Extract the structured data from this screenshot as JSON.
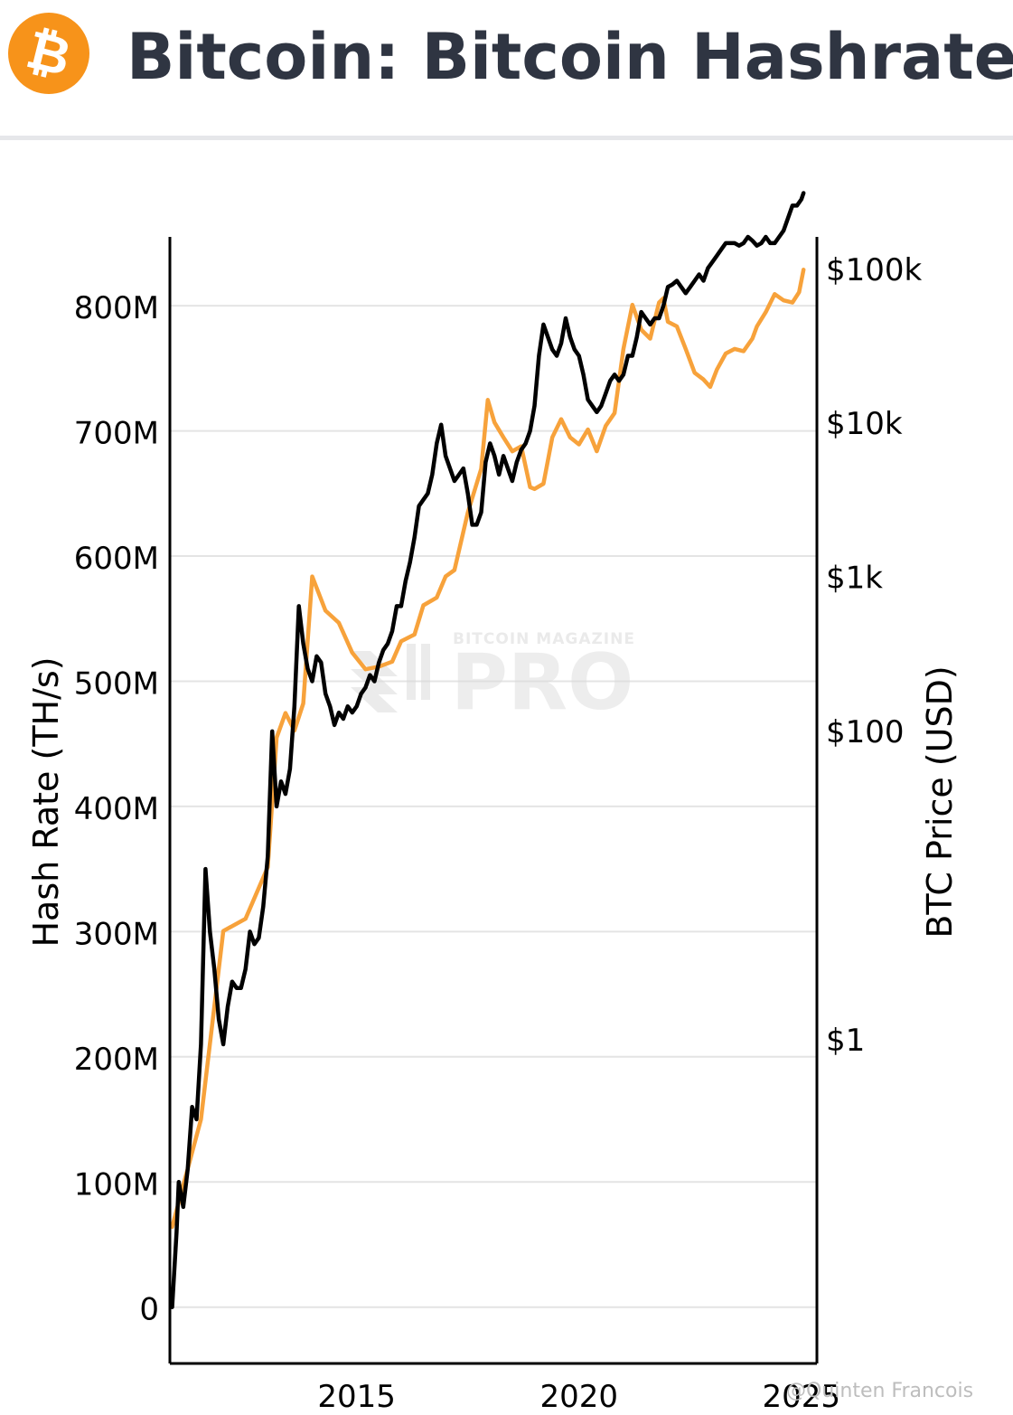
{
  "header": {
    "title": "Bitcoin: Bitcoin Hashrate",
    "logo_icon": "bitcoin-logo-icon",
    "logo_glyph": "₿",
    "logo_color": "#f7931a"
  },
  "watermark": {
    "small_text": "BITCOIN MAGAZINE",
    "big_text": "PRO"
  },
  "credit": "@Quinten Francois",
  "colors": {
    "hashrate": "#000000",
    "price": "#f7a23b",
    "grid": "#e4e4e4",
    "axis": "#000000"
  },
  "chart_data": {
    "type": "line",
    "title": "Bitcoin: Bitcoin Hashrate",
    "ylabel": "Hash Rate (TH/s)",
    "y2label": "BTC Price (USD)",
    "xlabel": "",
    "x_range": [
      2010.8,
      2025.35
    ],
    "ylim": [
      -45000000,
      855000000
    ],
    "y2_scale": "log",
    "y2lim": [
      0.0078,
      160000
    ],
    "x_ticks": [
      {
        "value": 2015,
        "label": "2015"
      },
      {
        "value": 2020,
        "label": "2020"
      },
      {
        "value": 2025,
        "label": "2025"
      }
    ],
    "y_ticks": [
      {
        "value": 0,
        "label": "0"
      },
      {
        "value": 100000000,
        "label": "100M"
      },
      {
        "value": 200000000,
        "label": "200M"
      },
      {
        "value": 300000000,
        "label": "300M"
      },
      {
        "value": 400000000,
        "label": "400M"
      },
      {
        "value": 500000000,
        "label": "500M"
      },
      {
        "value": 600000000,
        "label": "600M"
      },
      {
        "value": 700000000,
        "label": "700M"
      },
      {
        "value": 800000000,
        "label": "800M"
      }
    ],
    "y2_ticks": [
      {
        "value": 1,
        "label": "$1"
      },
      {
        "value": 100,
        "label": "$100"
      },
      {
        "value": 1000,
        "label": "$1k"
      },
      {
        "value": 10000,
        "label": "$10k"
      },
      {
        "value": 100000,
        "label": "$100k"
      }
    ],
    "grid": true,
    "legend": "none",
    "series": [
      {
        "axis": "left",
        "color": "#000000",
        "x": [
          2010.85,
          2010.95,
          2011.0,
          2011.1,
          2011.2,
          2011.3,
          2011.4,
          2011.5,
          2011.6,
          2011.7,
          2011.8,
          2011.9,
          2012.0,
          2012.1,
          2012.2,
          2012.3,
          2012.4,
          2012.5,
          2012.6,
          2012.7,
          2012.8,
          2012.9,
          2013.0,
          2013.1,
          2013.2,
          2013.3,
          2013.4,
          2013.5,
          2013.6,
          2013.7,
          2013.8,
          2013.9,
          2014.0,
          2014.1,
          2014.2,
          2014.3,
          2014.4,
          2014.5,
          2014.6,
          2014.7,
          2014.8,
          2014.9,
          2015.0,
          2015.1,
          2015.2,
          2015.3,
          2015.4,
          2015.5,
          2015.6,
          2015.7,
          2015.8,
          2015.9,
          2016.0,
          2016.1,
          2016.2,
          2016.3,
          2016.4,
          2016.5,
          2016.6,
          2016.7,
          2016.8,
          2016.9,
          2017.0,
          2017.1,
          2017.2,
          2017.3,
          2017.4,
          2017.5,
          2017.6,
          2017.7,
          2017.8,
          2017.9,
          2018.0,
          2018.1,
          2018.2,
          2018.3,
          2018.4,
          2018.5,
          2018.6,
          2018.7,
          2018.8,
          2018.9,
          2019.0,
          2019.1,
          2019.2,
          2019.3,
          2019.4,
          2019.5,
          2019.6,
          2019.7,
          2019.8,
          2019.9,
          2020.0,
          2020.1,
          2020.2,
          2020.3,
          2020.4,
          2020.5,
          2020.6,
          2020.7,
          2020.8,
          2020.9,
          2021.0,
          2021.1,
          2021.2,
          2021.3,
          2021.4,
          2021.5,
          2021.6,
          2021.7,
          2021.8,
          2021.9,
          2022.0,
          2022.1,
          2022.2,
          2022.3,
          2022.4,
          2022.5,
          2022.6,
          2022.7,
          2022.8,
          2022.9,
          2023.0,
          2023.1,
          2023.2,
          2023.3,
          2023.4,
          2023.5,
          2023.6,
          2023.7,
          2023.8,
          2023.9,
          2024.0,
          2024.1,
          2024.2,
          2024.3,
          2024.4,
          2024.5,
          2024.6,
          2024.7,
          2024.8,
          2024.9,
          2025.0,
          2025.05
        ],
        "y": [
          0,
          60000000,
          100000000,
          80000000,
          110000000,
          160000000,
          150000000,
          210000000,
          350000000,
          300000000,
          270000000,
          230000000,
          210000000,
          240000000,
          260000000,
          255000000,
          255000000,
          270000000,
          300000000,
          290000000,
          295000000,
          320000000,
          360000000,
          460000000,
          400000000,
          420000000,
          410000000,
          430000000,
          480000000,
          560000000,
          530000000,
          510000000,
          500000000,
          520000000,
          515000000,
          490000000,
          480000000,
          465000000,
          475000000,
          470000000,
          480000000,
          475000000,
          480000000,
          490000000,
          495000000,
          505000000,
          500000000,
          515000000,
          525000000,
          530000000,
          540000000,
          560000000,
          560000000,
          580000000,
          595000000,
          615000000,
          640000000,
          645000000,
          650000000,
          665000000,
          690000000,
          705000000,
          680000000,
          670000000,
          660000000,
          665000000,
          670000000,
          650000000,
          625000000,
          625000000,
          635000000,
          675000000,
          690000000,
          680000000,
          665000000,
          680000000,
          670000000,
          660000000,
          675000000,
          685000000,
          690000000,
          700000000,
          720000000,
          760000000,
          785000000,
          775000000,
          765000000,
          760000000,
          770000000,
          790000000,
          775000000,
          765000000,
          760000000,
          745000000,
          725000000,
          720000000,
          715000000,
          720000000,
          730000000,
          740000000,
          745000000,
          740000000,
          745000000,
          760000000,
          760000000,
          775000000,
          795000000,
          790000000,
          785000000,
          790000000,
          790000000,
          800000000,
          815000000,
          817000000,
          820000000,
          815000000,
          810000000,
          815000000,
          820000000,
          825000000,
          820000000,
          830000000,
          835000000,
          840000000,
          845000000,
          850000000,
          850000000,
          850000000,
          848000000,
          850000000,
          855000000,
          852000000,
          848000000,
          850000000,
          855000000,
          850000000,
          850000000,
          855000000,
          860000000,
          870000000,
          880000000,
          880000000,
          885000000,
          890000000
        ]
      },
      {
        "axis": "right",
        "color": "#f7a23b",
        "x": [
          2010.85,
          2011.5,
          2012.0,
          2012.5,
          2013.0,
          2013.2,
          2013.4,
          2013.6,
          2013.8,
          2014.0,
          2014.3,
          2014.6,
          2014.9,
          2015.2,
          2015.5,
          2015.8,
          2016.0,
          2016.3,
          2016.5,
          2016.8,
          2017.0,
          2017.2,
          2017.5,
          2017.8,
          2017.95,
          2018.1,
          2018.3,
          2018.5,
          2018.7,
          2018.9,
          2019.0,
          2019.2,
          2019.4,
          2019.6,
          2019.8,
          2020.0,
          2020.2,
          2020.4,
          2020.6,
          2020.8,
          2021.0,
          2021.2,
          2021.4,
          2021.6,
          2021.8,
          2021.9,
          2022.0,
          2022.2,
          2022.4,
          2022.6,
          2022.8,
          2022.95,
          2023.1,
          2023.3,
          2023.5,
          2023.7,
          2023.9,
          2024.0,
          2024.2,
          2024.4,
          2024.6,
          2024.8,
          2024.95,
          2025.05
        ],
        "y": [
          0.06,
          0.3,
          5,
          6,
          13,
          90,
          130,
          100,
          150,
          1000,
          600,
          500,
          320,
          250,
          260,
          280,
          380,
          420,
          650,
          730,
          1000,
          1100,
          2600,
          5000,
          14000,
          10000,
          8000,
          6500,
          7000,
          3800,
          3700,
          4000,
          8000,
          10500,
          8000,
          7200,
          9000,
          6500,
          9500,
          11500,
          30000,
          58000,
          40000,
          35000,
          60000,
          64000,
          45000,
          42000,
          30000,
          21000,
          19000,
          17000,
          22000,
          28000,
          30000,
          29000,
          35000,
          42000,
          52000,
          68000,
          62000,
          60000,
          70000,
          98000
        ]
      }
    ]
  }
}
